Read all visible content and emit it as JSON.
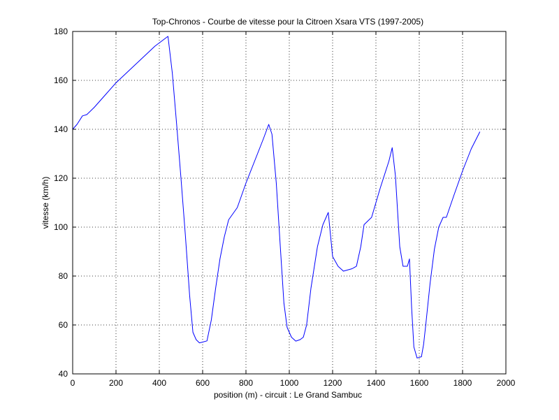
{
  "chart_data": {
    "type": "line",
    "title": "Top-Chronos - Courbe de vitesse pour la Citroen Xsara VTS (1997-2005)",
    "xlabel": "position (m) - circuit : Le Grand Sambuc",
    "ylabel": "vitesse (km/h)",
    "xlim": [
      0,
      2000
    ],
    "ylim": [
      40,
      180
    ],
    "xticks": [
      0,
      200,
      400,
      600,
      800,
      1000,
      1200,
      1400,
      1600,
      1800,
      2000
    ],
    "yticks": [
      40,
      60,
      80,
      100,
      120,
      140,
      160,
      180
    ],
    "grid": true,
    "line_color": "#0000ff",
    "series": [
      {
        "x": [
          0,
          20,
          45,
          65,
          100,
          150,
          200,
          260,
          320,
          380,
          440,
          460,
          480,
          500,
          520,
          540,
          555,
          570,
          585,
          600,
          620,
          640,
          660,
          680,
          700,
          720,
          760,
          800,
          840,
          880,
          905,
          920,
          940,
          960,
          975,
          990,
          1010,
          1030,
          1050,
          1065,
          1080,
          1100,
          1130,
          1155,
          1170,
          1180,
          1200,
          1225,
          1250,
          1290,
          1310,
          1330,
          1345,
          1380,
          1420,
          1460,
          1475,
          1490,
          1510,
          1525,
          1545,
          1555,
          1565,
          1575,
          1590,
          1610,
          1620,
          1630,
          1650,
          1670,
          1690,
          1710,
          1725,
          1760,
          1800,
          1840,
          1880
        ],
        "y": [
          140,
          142,
          145.5,
          146,
          149,
          154,
          159,
          164,
          169,
          174,
          178,
          163,
          142,
          120,
          97,
          72,
          57,
          54,
          52.7,
          53,
          53.5,
          62,
          75,
          87,
          96,
          103,
          108,
          118,
          127,
          136,
          142,
          138,
          118,
          90,
          69,
          59,
          55,
          53.4,
          54,
          55,
          60,
          75,
          92,
          101,
          104,
          106,
          88,
          84,
          82,
          83,
          84,
          92,
          101,
          104,
          116,
          127,
          132.5,
          121,
          92,
          84,
          84,
          87,
          67,
          51,
          46.5,
          47,
          52,
          60,
          77,
          91,
          100,
          104,
          104,
          113,
          123,
          132,
          139
        ]
      }
    ]
  }
}
